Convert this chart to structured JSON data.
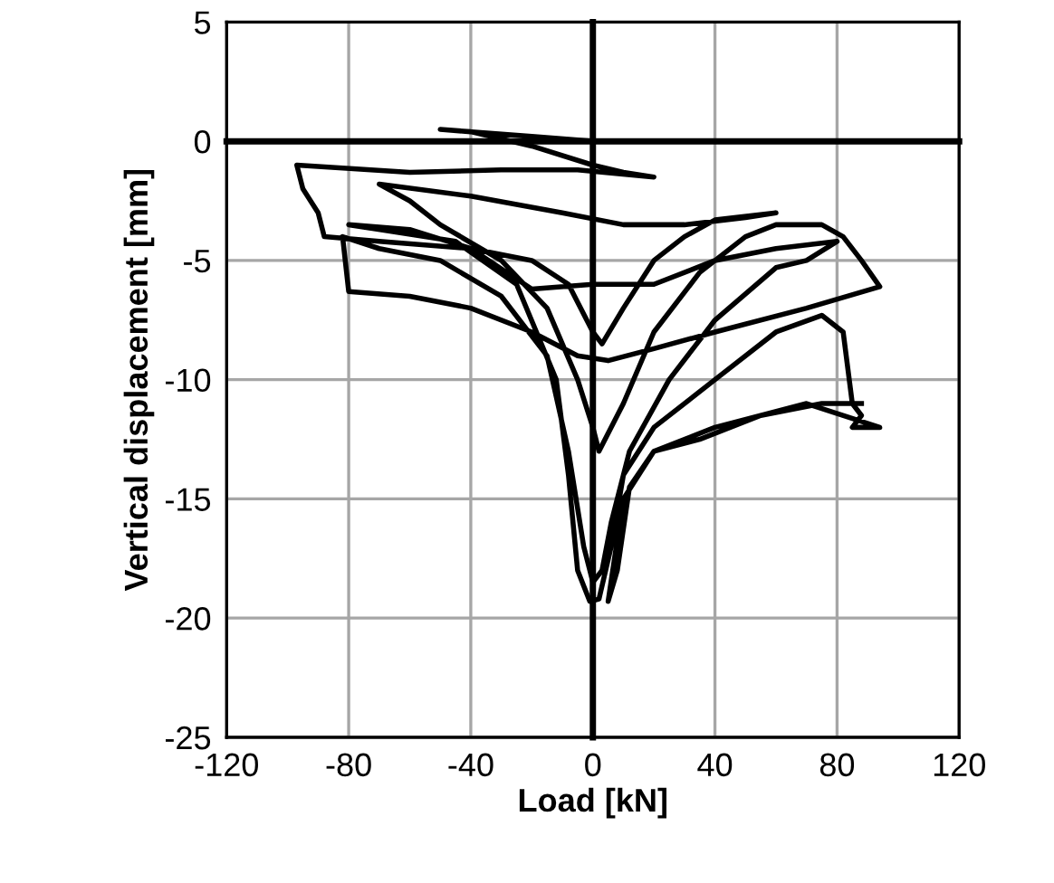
{
  "chart_data": {
    "type": "line",
    "xlabel": "Load [kN]",
    "ylabel": "Vertical displacement [mm]",
    "xlim": [
      -120,
      120
    ],
    "xticks": [
      -120,
      -80,
      -40,
      0,
      40,
      80,
      120
    ],
    "ylim": [
      -25,
      5
    ],
    "yticks": [
      -25,
      -20,
      -15,
      -10,
      -5,
      0,
      5
    ],
    "grid": true,
    "marker": "none",
    "line_style": "solid",
    "series": [
      {
        "color": "#000000",
        "x": [
          0,
          -20,
          -50,
          -40,
          -20,
          0,
          10,
          20,
          -5,
          -30,
          -60,
          -97,
          -95,
          -90,
          -88,
          -70,
          -40,
          -20,
          -8,
          0,
          3,
          10,
          20,
          30,
          40,
          60,
          50,
          30,
          10,
          -10,
          -40,
          -70,
          -60,
          -50,
          -30,
          -15,
          -5,
          0,
          2,
          10,
          20,
          35,
          50,
          60,
          75,
          82,
          88,
          94,
          70,
          40,
          20,
          5,
          -5,
          -20,
          -40,
          -60,
          -80,
          -82,
          -70,
          -50,
          -30,
          -15,
          -8,
          -3,
          0,
          3,
          6,
          12,
          25,
          40,
          60,
          70,
          80,
          60,
          40,
          20,
          0,
          -20,
          -40,
          -60,
          -80,
          -45,
          -25,
          -12,
          -8,
          -5,
          -1,
          2,
          6,
          10,
          20,
          40,
          60,
          75,
          82,
          85,
          88,
          85,
          94,
          70,
          40,
          20,
          10,
          5,
          8,
          12,
          20,
          35,
          55,
          75,
          88
        ],
        "values": [
          0,
          0.2,
          0.5,
          0.4,
          -0.2,
          -1,
          -1.3,
          -1.5,
          -1.2,
          -1.2,
          -1.3,
          -1,
          -2,
          -3,
          -4,
          -4.2,
          -4.5,
          -5,
          -6,
          -8,
          -8.5,
          -7,
          -5,
          -4,
          -3.3,
          -3,
          -3.2,
          -3.5,
          -3.5,
          -3,
          -2.3,
          -1.8,
          -2.5,
          -3.5,
          -5,
          -7,
          -10,
          -12,
          -13,
          -11,
          -8,
          -5.5,
          -4,
          -3.5,
          -3.5,
          -4,
          -5,
          -6.1,
          -7,
          -8,
          -8.7,
          -9.2,
          -9,
          -8,
          -7,
          -6.5,
          -6.3,
          -4,
          -4.5,
          -5,
          -6.5,
          -9,
          -13,
          -17,
          -18.5,
          -18,
          -16,
          -13,
          -10,
          -7.5,
          -5.3,
          -5,
          -4.2,
          -4.5,
          -5,
          -6,
          -6,
          -6.2,
          -4.5,
          -3.7,
          -3.5,
          -4.2,
          -6,
          -10,
          -14,
          -18,
          -19.3,
          -19.2,
          -17,
          -14,
          -12,
          -10,
          -8,
          -7.3,
          -8,
          -11,
          -11.5,
          -12,
          -12,
          -11,
          -12,
          -13,
          -15,
          -19.3,
          -18,
          -14.5,
          -13,
          -12.5,
          -11.5,
          -11,
          -11
        ]
      }
    ]
  }
}
